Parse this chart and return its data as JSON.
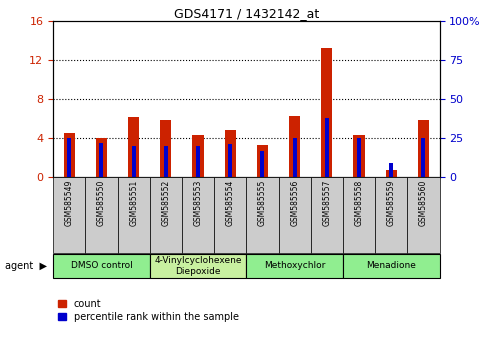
{
  "title": "GDS4171 / 1432142_at",
  "samples": [
    "GSM585549",
    "GSM585550",
    "GSM585551",
    "GSM585552",
    "GSM585553",
    "GSM585554",
    "GSM585555",
    "GSM585556",
    "GSM585557",
    "GSM585558",
    "GSM585559",
    "GSM585560"
  ],
  "count": [
    4.5,
    4.0,
    6.2,
    5.9,
    4.3,
    4.8,
    3.3,
    6.3,
    13.2,
    4.3,
    0.7,
    5.9
  ],
  "percentile": [
    25.0,
    22.0,
    20.0,
    20.0,
    20.0,
    21.0,
    17.0,
    25.0,
    38.0,
    25.0,
    9.0,
    25.0
  ],
  "count_color": "#cc2200",
  "percentile_color": "#0000cc",
  "ylim_left": [
    0,
    16
  ],
  "ylim_right": [
    0,
    100
  ],
  "yticks_left": [
    0,
    4,
    8,
    12,
    16
  ],
  "yticks_right": [
    0,
    25,
    50,
    75,
    100
  ],
  "ytick_labels_right": [
    "0",
    "25",
    "50",
    "75",
    "100%"
  ],
  "grid_lines": [
    4,
    8,
    12
  ],
  "agent_groups": [
    {
      "label": "DMSO control",
      "start": 0,
      "end": 2,
      "color": "#90EE90"
    },
    {
      "label": "4-Vinylcyclohexene\nDiepoxide",
      "start": 3,
      "end": 5,
      "color": "#c8f0a0"
    },
    {
      "label": "Methoxychlor",
      "start": 6,
      "end": 8,
      "color": "#90EE90"
    },
    {
      "label": "Menadione",
      "start": 9,
      "end": 11,
      "color": "#90EE90"
    }
  ],
  "bar_width": 0.35,
  "blue_bar_width": 0.12,
  "bg_color": "#ffffff",
  "tick_area_color": "#cccccc",
  "legend_count_label": "count",
  "legend_pct_label": "percentile rank within the sample"
}
